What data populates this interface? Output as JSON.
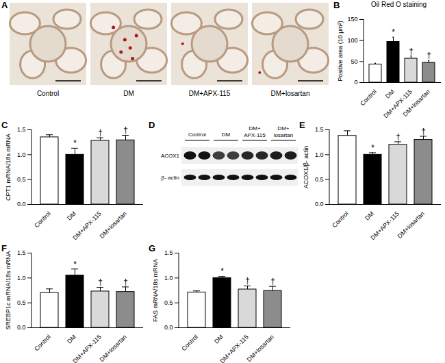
{
  "chart_data": [
    {
      "panel": "B",
      "type": "bar",
      "title": "Oil Red O staining",
      "categories": [
        "Control",
        "DM",
        "DM+APX-115",
        "DM+losartan"
      ],
      "values": [
        43,
        97,
        57,
        47
      ],
      "errors": [
        3,
        11,
        6,
        5
      ],
      "colors": [
        "#ffffff",
        "#000000",
        "#d9d9d9",
        "#8c8c8c"
      ],
      "y_label": "Positive area (10 μm²)",
      "ylim": [
        0,
        150
      ],
      "yticks": [
        0,
        50,
        100,
        150
      ],
      "annotations": [
        null,
        "*",
        "†",
        "†"
      ]
    },
    {
      "panel": "C",
      "type": "bar",
      "categories": [
        "Control",
        "DM",
        "DM+APX-115",
        "DM+losartan"
      ],
      "values": [
        1.35,
        1.0,
        1.28,
        1.29
      ],
      "errors": [
        0.05,
        0.13,
        0.06,
        0.1
      ],
      "colors": [
        "#ffffff",
        "#000000",
        "#d9d9d9",
        "#8c8c8c"
      ],
      "y_label": "CPT1 mRNA/18s mRNA",
      "ylim": [
        0,
        1.5
      ],
      "yticks": [
        {
          "value": 0,
          "label": "0.0"
        },
        0.5,
        {
          "value": 1,
          "label": "1.0"
        },
        1.5
      ],
      "annotations": [
        null,
        "*",
        "†",
        "†"
      ]
    },
    {
      "panel": "E",
      "type": "bar",
      "categories": [
        "Control",
        "DM",
        "DM+APX-115",
        "DM+losartan"
      ],
      "values": [
        1.38,
        1.0,
        1.2,
        1.3
      ],
      "errors": [
        0.1,
        0.04,
        0.06,
        0.07
      ],
      "colors": [
        "#ffffff",
        "#000000",
        "#d9d9d9",
        "#8c8c8c"
      ],
      "y_label": "ACOX1/β- actin",
      "ylim": [
        0,
        1.5
      ],
      "yticks": [
        {
          "value": 0,
          "label": "0.0"
        },
        0.5,
        {
          "value": 1,
          "label": "1.0"
        },
        1.5
      ],
      "annotations": [
        null,
        "*",
        "†",
        "†"
      ]
    },
    {
      "panel": "F",
      "type": "bar",
      "categories": [
        "Control",
        "DM",
        "DM+APX-115",
        "DM+losartan"
      ],
      "values": [
        0.7,
        1.05,
        0.73,
        0.72
      ],
      "errors": [
        0.08,
        0.13,
        0.08,
        0.1
      ],
      "colors": [
        "#ffffff",
        "#000000",
        "#d9d9d9",
        "#8c8c8c"
      ],
      "y_label": "SREBP1c mRNA/18s mRNA",
      "ylim": [
        0,
        1.5
      ],
      "yticks": [
        {
          "value": 0,
          "label": "0.0"
        },
        0.5,
        {
          "value": 1,
          "label": "1.0"
        },
        1.5
      ],
      "annotations": [
        null,
        "*",
        "†",
        "†"
      ]
    },
    {
      "panel": "G",
      "type": "bar",
      "categories": [
        "Control",
        "DM",
        "DM+APX-115",
        "DM+losartan"
      ],
      "values": [
        0.71,
        1.0,
        0.77,
        0.74
      ],
      "errors": [
        0.03,
        0.03,
        0.07,
        0.09
      ],
      "colors": [
        "#ffffff",
        "#000000",
        "#d9d9d9",
        "#8c8c8c"
      ],
      "y_label": "FAS mRNA/18s mRNA",
      "ylim": [
        0,
        1.5
      ],
      "yticks": [
        {
          "value": 0,
          "label": "0.0"
        },
        0.5,
        {
          "value": 1,
          "label": "1.0"
        },
        1.5
      ],
      "annotations": [
        null,
        "*",
        "†",
        "†"
      ]
    }
  ],
  "panel_A": {
    "panel": "A",
    "labels": [
      "Control",
      "DM",
      "DM+APX-115",
      "DM+losartan"
    ]
  },
  "panel_D": {
    "panel": "D",
    "groups": [
      "Control",
      "DM",
      "DM+APX-115",
      "DM+losartan"
    ],
    "bands": [
      "ACOX1",
      "β- actin"
    ]
  }
}
